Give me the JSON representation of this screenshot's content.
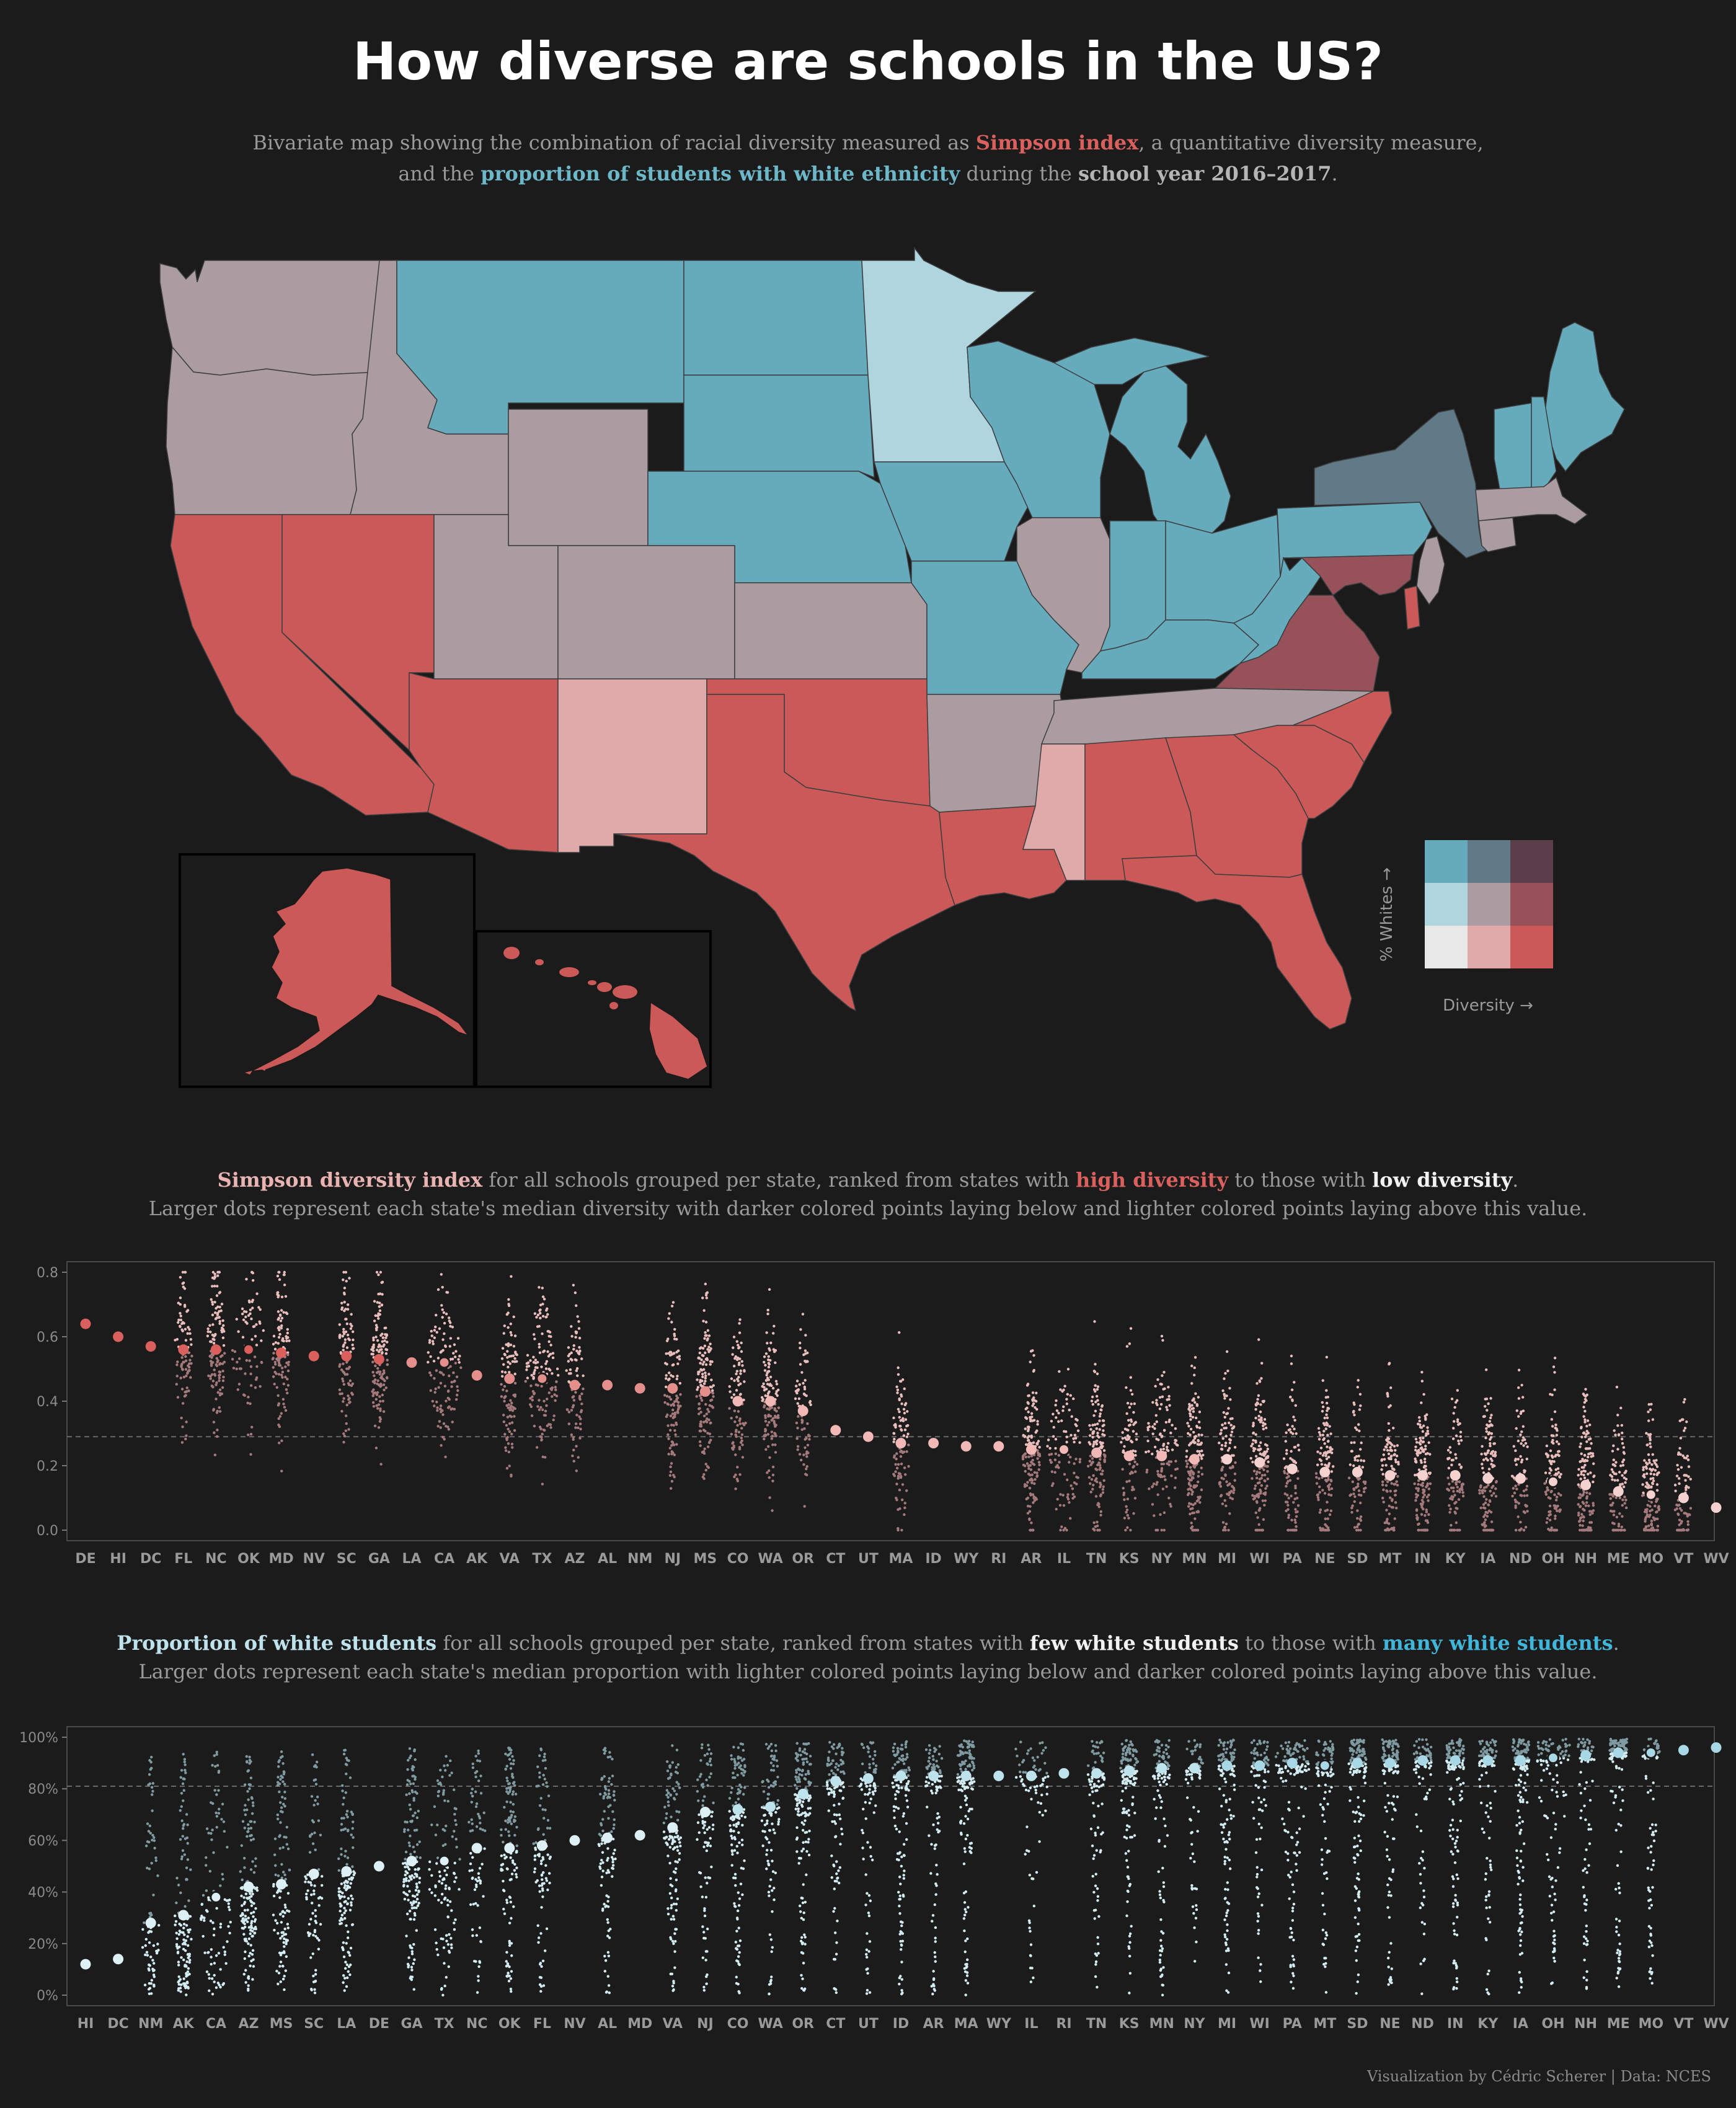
{
  "title": "How diverse are schools in the US?",
  "subtitle": {
    "l1_a": "Bivariate map showing the combination of racial diversity measured as ",
    "l1_b": "Simpson index",
    "l1_c": ", a quantitative diversity measure,",
    "l2_a": "and the ",
    "l2_b": "proportion of students with white ethnicity",
    "l2_c": " during the ",
    "l2_d": "school year 2016–2017",
    "l2_e": "."
  },
  "legend": {
    "y_label": "% Whites →",
    "x_label": "Diversity →"
  },
  "section1": {
    "a": "Simpson diversity index",
    "b": " for all schools grouped per state, ranked from states with ",
    "c": "high diversity",
    "d": " to those with ",
    "e": "low diversity",
    "f": ".",
    "line2": "Larger dots represent each state's median diversity with darker colored points laying below and lighter colored points laying above this value."
  },
  "section2": {
    "a": "Proportion of white students",
    "b": " for all schools grouped per state, ranked from states with ",
    "c": "few white students",
    "d": " to those with ",
    "e": "many white students",
    "f": ".",
    "line2": "Larger dots represent each state's median proportion with lighter colored points laying below and darker colored points laying above this value."
  },
  "credit": "Visualization by Cédric Scherer  |  Data: NCES",
  "colors": {
    "bg": "#1b1b1c",
    "red": "#cb5957",
    "pink": "#e1aaaa",
    "blue": "#65abbc",
    "light_blue": "#afd5de",
    "grey_mauve": "#ab9ca2",
    "slate": "#607a88",
    "dark_red": "#975159",
    "plum": "#5a3f4b",
    "offwhite": "#e8e8e8"
  },
  "map": {
    "states": [
      {
        "id": "WA",
        "cat": "grey_mauve"
      },
      {
        "id": "OR",
        "cat": "grey_mauve"
      },
      {
        "id": "ID",
        "cat": "grey_mauve"
      },
      {
        "id": "MT",
        "cat": "blue"
      },
      {
        "id": "WY",
        "cat": "grey_mauve"
      },
      {
        "id": "ND",
        "cat": "blue"
      },
      {
        "id": "SD",
        "cat": "blue"
      },
      {
        "id": "MN",
        "cat": "light_blue"
      },
      {
        "id": "NE",
        "cat": "blue"
      },
      {
        "id": "IA",
        "cat": "blue"
      },
      {
        "id": "WI",
        "cat": "blue"
      },
      {
        "id": "MI",
        "cat": "blue"
      },
      {
        "id": "CA",
        "cat": "red"
      },
      {
        "id": "NV",
        "cat": "red"
      },
      {
        "id": "UT",
        "cat": "grey_mauve"
      },
      {
        "id": "CO",
        "cat": "grey_mauve"
      },
      {
        "id": "KS",
        "cat": "grey_mauve"
      },
      {
        "id": "MO",
        "cat": "blue"
      },
      {
        "id": "IL",
        "cat": "grey_mauve"
      },
      {
        "id": "IN",
        "cat": "blue"
      },
      {
        "id": "OH",
        "cat": "blue"
      },
      {
        "id": "PA",
        "cat": "blue"
      },
      {
        "id": "NY",
        "cat": "slate"
      },
      {
        "id": "KY",
        "cat": "blue"
      },
      {
        "id": "WV",
        "cat": "blue"
      },
      {
        "id": "VA",
        "cat": "dark_red"
      },
      {
        "id": "AZ",
        "cat": "red"
      },
      {
        "id": "NM",
        "cat": "pink"
      },
      {
        "id": "OK",
        "cat": "red"
      },
      {
        "id": "TX",
        "cat": "red"
      },
      {
        "id": "AR",
        "cat": "grey_mauve"
      },
      {
        "id": "TN",
        "cat": "grey_mauve"
      },
      {
        "id": "NC",
        "cat": "red"
      },
      {
        "id": "SC",
        "cat": "red"
      },
      {
        "id": "LA",
        "cat": "red"
      },
      {
        "id": "MS",
        "cat": "pink"
      },
      {
        "id": "AL",
        "cat": "red"
      },
      {
        "id": "GA",
        "cat": "red"
      },
      {
        "id": "FL",
        "cat": "red"
      },
      {
        "id": "ME",
        "cat": "blue"
      },
      {
        "id": "NH",
        "cat": "blue"
      },
      {
        "id": "VT",
        "cat": "blue"
      },
      {
        "id": "MA",
        "cat": "grey_mauve"
      },
      {
        "id": "CT",
        "cat": "grey_mauve"
      },
      {
        "id": "NJ",
        "cat": "grey_mauve"
      },
      {
        "id": "DE",
        "cat": "red"
      },
      {
        "id": "MD",
        "cat": "dark_red"
      },
      {
        "id": "AK",
        "cat": "red"
      },
      {
        "id": "HI",
        "cat": "red"
      }
    ]
  },
  "chart_data": [
    {
      "type": "scatter",
      "title": "Simpson diversity index",
      "ylim": [
        0,
        0.8
      ],
      "yticks": [
        0.0,
        0.2,
        0.4,
        0.6,
        0.8
      ],
      "ytick_labels": [
        "0.0",
        "0.2",
        "0.4",
        "0.6",
        "0.8"
      ],
      "reference_line": 0.29,
      "categories": [
        "DE",
        "HI",
        "DC",
        "FL",
        "NC",
        "OK",
        "MD",
        "NV",
        "SC",
        "GA",
        "LA",
        "CA",
        "AK",
        "VA",
        "TX",
        "AZ",
        "AL",
        "NM",
        "NJ",
        "MS",
        "CO",
        "WA",
        "OR",
        "CT",
        "UT",
        "MA",
        "ID",
        "WY",
        "RI",
        "AR",
        "IL",
        "TN",
        "KS",
        "NY",
        "MN",
        "MI",
        "WI",
        "PA",
        "NE",
        "SD",
        "MT",
        "IN",
        "KY",
        "IA",
        "ND",
        "OH",
        "NH",
        "ME",
        "MO",
        "VT",
        "WV"
      ],
      "medians": [
        0.64,
        0.6,
        0.57,
        0.56,
        0.56,
        0.56,
        0.55,
        0.54,
        0.54,
        0.53,
        0.52,
        0.52,
        0.48,
        0.47,
        0.47,
        0.45,
        0.45,
        0.44,
        0.44,
        0.43,
        0.4,
        0.4,
        0.37,
        0.31,
        0.29,
        0.27,
        0.27,
        0.26,
        0.26,
        0.25,
        0.25,
        0.24,
        0.23,
        0.23,
        0.22,
        0.22,
        0.21,
        0.19,
        0.18,
        0.18,
        0.17,
        0.17,
        0.17,
        0.16,
        0.16,
        0.15,
        0.14,
        0.12,
        0.11,
        0.1,
        0.07
      ]
    },
    {
      "type": "scatter",
      "title": "Proportion of white students",
      "ylim": [
        0,
        100
      ],
      "yticks": [
        0,
        20,
        40,
        60,
        80,
        100
      ],
      "ytick_labels": [
        "0%",
        "20%",
        "40%",
        "60%",
        "80%",
        "100%"
      ],
      "reference_line": 81,
      "categories": [
        "HI",
        "DC",
        "NM",
        "AK",
        "CA",
        "AZ",
        "MS",
        "SC",
        "LA",
        "DE",
        "GA",
        "TX",
        "NC",
        "OK",
        "FL",
        "NV",
        "AL",
        "MD",
        "VA",
        "NJ",
        "CO",
        "WA",
        "OR",
        "CT",
        "UT",
        "ID",
        "AR",
        "MA",
        "WY",
        "IL",
        "RI",
        "TN",
        "KS",
        "MN",
        "NY",
        "MI",
        "WI",
        "PA",
        "MT",
        "SD",
        "NE",
        "ND",
        "IN",
        "KY",
        "IA",
        "OH",
        "NH",
        "ME",
        "MO",
        "VT",
        "WV"
      ],
      "medians": [
        12,
        14,
        28,
        31,
        38,
        42,
        43,
        47,
        48,
        50,
        52,
        52,
        57,
        57,
        58,
        60,
        61,
        62,
        65,
        71,
        72,
        73,
        78,
        83,
        84,
        85,
        85,
        85,
        85,
        85,
        86,
        86,
        87,
        88,
        88,
        89,
        89,
        90,
        89,
        90,
        90,
        91,
        91,
        91,
        91,
        92,
        93,
        94,
        94,
        95,
        96
      ]
    }
  ]
}
